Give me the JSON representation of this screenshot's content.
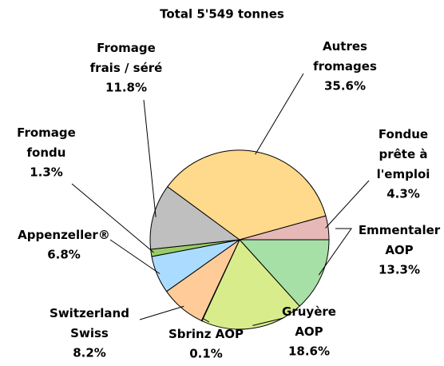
{
  "chart_data": {
    "type": "pie",
    "title": "Total 5'549 tonnes",
    "categories": [
      "Emmentaler\nAOP",
      "Gruyère\nAOP",
      "Sbrinz AOP",
      "Switzerland\nSwiss",
      "Appenzeller®",
      "Fromage\nfondu",
      "Fromage\nfrais / séré",
      "Autres\nfromages",
      "Fondue\nprête à\nl'emploi"
    ],
    "values": [
      13.3,
      18.6,
      0.1,
      8.2,
      6.8,
      1.3,
      11.8,
      35.6,
      4.3
    ],
    "value_labels": [
      "13.3%",
      "18.6%",
      "0.1%",
      "8.2%",
      "6.8%",
      "1.3%",
      "11.8%",
      "35.6%",
      "4.3%"
    ],
    "colors": [
      "#a6e0a6",
      "#d9ec8c",
      "#c0504d",
      "#ffcc99",
      "#abdcff",
      "#99cc66",
      "#bfbfbf",
      "#ffd98c",
      "#e6b9b8"
    ]
  }
}
